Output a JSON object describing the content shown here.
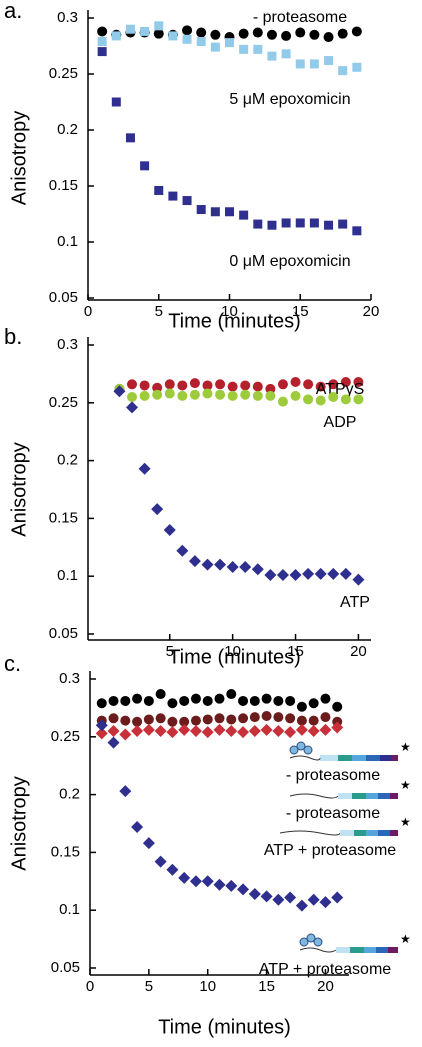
{
  "chart_data": [
    {
      "type": "scatter",
      "panel_label": "a.",
      "x_label": "Time (minutes)",
      "y_label": "Anisotropy",
      "xlim": [
        0,
        20
      ],
      "ylim": [
        0.05,
        0.3
      ],
      "xticks": [
        0,
        5,
        10,
        15,
        20
      ],
      "yticks": [
        0.05,
        0.1,
        0.15,
        0.2,
        0.25,
        0.3
      ],
      "x": [
        1,
        2,
        3,
        4,
        5,
        6,
        7,
        8,
        9,
        10,
        11,
        12,
        13,
        14,
        15,
        16,
        17,
        18,
        19
      ],
      "series": [
        {
          "name": "- proteasome",
          "color": "#000000",
          "marker": "circle",
          "values": [
            0.288,
            0.285,
            0.287,
            0.287,
            0.286,
            0.285,
            0.289,
            0.287,
            0.285,
            0.283,
            0.286,
            0.287,
            0.285,
            0.284,
            0.287,
            0.285,
            0.283,
            0.286,
            0.288
          ]
        },
        {
          "name": "5 μM epoxomicin",
          "color": "#92cbea",
          "marker": "square",
          "values": [
            0.279,
            0.284,
            0.29,
            0.288,
            0.293,
            0.284,
            0.281,
            0.279,
            0.274,
            0.278,
            0.272,
            0.272,
            0.266,
            0.268,
            0.259,
            0.259,
            0.262,
            0.253,
            0.256
          ]
        },
        {
          "name": "0 μM epoxomicin",
          "color": "#2e2f8e",
          "marker": "square",
          "values": [
            0.27,
            0.225,
            0.193,
            0.168,
            0.146,
            0.141,
            0.137,
            0.129,
            0.127,
            0.127,
            0.124,
            0.116,
            0.115,
            0.117,
            0.117,
            0.117,
            0.115,
            0.116,
            0.11
          ]
        }
      ]
    },
    {
      "type": "scatter",
      "panel_label": "b.",
      "x_label": "Time (minutes)",
      "y_label": "Anisotropy",
      "xlim": [
        -1.5,
        21
      ],
      "ylim": [
        0.05,
        0.3
      ],
      "xticks": [
        5,
        10,
        15,
        20
      ],
      "yticks": [
        0.05,
        0.1,
        0.15,
        0.2,
        0.25,
        0.3
      ],
      "x": [
        1,
        2,
        3,
        4,
        5,
        6,
        7,
        8,
        9,
        10,
        11,
        12,
        13,
        14,
        15,
        16,
        17,
        18,
        19,
        20
      ],
      "series": [
        {
          "name": "ATPγS",
          "color": "#b4202c",
          "marker": "circle",
          "values": [
            0.262,
            0.266,
            0.265,
            0.263,
            0.266,
            0.265,
            0.267,
            0.265,
            0.266,
            0.264,
            0.265,
            0.264,
            0.262,
            0.266,
            0.268,
            0.266,
            0.264,
            0.266,
            0.268,
            0.268
          ]
        },
        {
          "name": "ADP",
          "color": "#9dcb3c",
          "marker": "circle",
          "values": [
            0.262,
            0.255,
            0.256,
            0.257,
            0.258,
            0.256,
            0.257,
            0.258,
            0.257,
            0.256,
            0.257,
            0.256,
            0.256,
            0.251,
            0.256,
            0.253,
            0.252,
            0.255,
            0.253,
            0.253
          ]
        },
        {
          "name": "ATP",
          "color": "#2e2f8e",
          "marker": "diamond",
          "values": [
            0.26,
            0.246,
            0.193,
            0.158,
            0.14,
            0.122,
            0.113,
            0.11,
            0.11,
            0.108,
            0.108,
            0.106,
            0.101,
            0.101,
            0.101,
            0.102,
            0.102,
            0.102,
            0.102,
            0.097
          ]
        }
      ]
    },
    {
      "type": "scatter",
      "panel_label": "c.",
      "x_label": "Time (minutes)",
      "y_label": "Anisotropy",
      "xlim": [
        0,
        22
      ],
      "ylim": [
        0.05,
        0.3
      ],
      "xticks": [
        0,
        5,
        10,
        15,
        20
      ],
      "yticks": [
        0.05,
        0.1,
        0.15,
        0.2,
        0.25,
        0.3
      ],
      "x": [
        1,
        2,
        3,
        4,
        5,
        6,
        7,
        8,
        9,
        10,
        11,
        12,
        13,
        14,
        15,
        16,
        17,
        18,
        19,
        20,
        21
      ],
      "series": [
        {
          "name": "- proteasome",
          "color": "#000000",
          "marker": "circle",
          "values": [
            0.279,
            0.281,
            0.281,
            0.283,
            0.281,
            0.287,
            0.279,
            0.281,
            0.283,
            0.281,
            0.283,
            0.287,
            0.281,
            0.281,
            0.283,
            0.281,
            0.281,
            0.276,
            0.279,
            0.283,
            0.276
          ]
        },
        {
          "name": "- proteasome",
          "color": "#6b1c1c",
          "marker": "circle",
          "values": [
            0.264,
            0.266,
            0.264,
            0.263,
            0.265,
            0.266,
            0.263,
            0.263,
            0.264,
            0.265,
            0.266,
            0.265,
            0.266,
            0.267,
            0.268,
            0.267,
            0.266,
            0.264,
            0.264,
            0.267,
            0.263
          ]
        },
        {
          "name": "ATP + proteasome",
          "color": "#c8303a",
          "marker": "diamond",
          "values": [
            0.253,
            0.255,
            0.252,
            0.255,
            0.256,
            0.255,
            0.254,
            0.256,
            0.255,
            0.254,
            0.256,
            0.255,
            0.254,
            0.255,
            0.256,
            0.255,
            0.254,
            0.256,
            0.255,
            0.256,
            0.258
          ]
        },
        {
          "name": "ATP + proteasome",
          "color": "#2e2f8e",
          "marker": "diamond",
          "values": [
            0.26,
            0.245,
            0.203,
            0.172,
            0.158,
            0.142,
            0.135,
            0.128,
            0.125,
            0.125,
            0.122,
            0.121,
            0.118,
            0.114,
            0.112,
            0.109,
            0.111,
            0.104,
            0.109,
            0.107,
            0.111
          ]
        }
      ]
    }
  ]
}
